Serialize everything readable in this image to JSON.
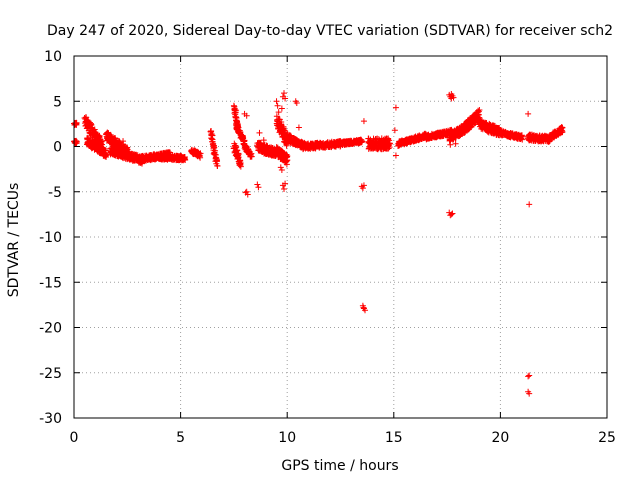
{
  "chart_data": {
    "type": "scatter",
    "title": "Day 247 of 2020, Sidereal Day-to-day VTEC variation (SDTVAR) for receiver sch2",
    "xlabel": "GPS time / hours",
    "ylabel": "SDTVAR / TECUs",
    "xlim": [
      0,
      25
    ],
    "ylim": [
      -30,
      10
    ],
    "xticks": [
      0,
      5,
      10,
      15,
      20,
      25
    ],
    "yticks": [
      -30,
      -25,
      -20,
      -15,
      -10,
      -5,
      0,
      5,
      10
    ],
    "x_tick_labels": [
      "0",
      "5",
      "10",
      "15",
      "20",
      "25"
    ],
    "y_tick_labels": [
      "-30",
      "-25",
      "-20",
      "-15",
      "-10",
      "-5",
      "0",
      "5",
      "10"
    ],
    "grid": true,
    "marker": "+",
    "color": "#ff0000",
    "series": [
      {
        "name": "sch2",
        "segments": [
          {
            "x0": 0.0,
            "x1": 0.1,
            "y0": 2.5,
            "y1": 2.5,
            "spread": 0.3
          },
          {
            "x0": 0.0,
            "x1": 0.1,
            "y0": 0.5,
            "y1": 0.5,
            "spread": 0.3
          },
          {
            "x0": 0.5,
            "x1": 1.3,
            "y0": 2.8,
            "y1": 0.2,
            "spread": 1.2
          },
          {
            "x0": 0.6,
            "x1": 1.5,
            "y0": 0.6,
            "y1": -0.8,
            "spread": 0.9
          },
          {
            "x0": 1.5,
            "x1": 2.5,
            "y0": 1.2,
            "y1": -0.6,
            "spread": 1.0
          },
          {
            "x0": 1.7,
            "x1": 3.2,
            "y0": -0.5,
            "y1": -1.5,
            "spread": 0.8
          },
          {
            "x0": 3.0,
            "x1": 4.5,
            "y0": -1.4,
            "y1": -0.9,
            "spread": 0.6
          },
          {
            "x0": 4.0,
            "x1": 5.2,
            "y0": -1.2,
            "y1": -1.3,
            "spread": 0.5
          },
          {
            "x0": 5.5,
            "x1": 5.9,
            "y0": -0.5,
            "y1": -1.0,
            "spread": 0.5
          },
          {
            "x0": 6.4,
            "x1": 6.7,
            "y0": 1.5,
            "y1": -2.0,
            "spread": 1.0
          },
          {
            "x0": 7.5,
            "x1": 7.7,
            "y0": 4.2,
            "y1": 2.0,
            "spread": 0.5
          },
          {
            "x0": 7.6,
            "x1": 8.0,
            "y0": 2.3,
            "y1": 0.3,
            "spread": 0.6
          },
          {
            "x0": 7.5,
            "x1": 7.8,
            "y0": 0.0,
            "y1": -2.0,
            "spread": 1.0
          },
          {
            "x0": 8.0,
            "x1": 8.3,
            "y0": 0.0,
            "y1": -1.0,
            "spread": 0.5
          },
          {
            "x0": 8.6,
            "x1": 9.5,
            "y0": 0.0,
            "y1": -0.8,
            "spread": 1.0
          },
          {
            "x0": 9.5,
            "x1": 10.0,
            "y0": 3.0,
            "y1": 0.5,
            "spread": 1.5
          },
          {
            "x0": 9.5,
            "x1": 10.0,
            "y0": -0.5,
            "y1": -1.5,
            "spread": 1.0
          },
          {
            "x0": 10.0,
            "x1": 10.8,
            "y0": 1.0,
            "y1": 0.0,
            "spread": 0.8
          },
          {
            "x0": 10.8,
            "x1": 12.5,
            "y0": 0.0,
            "y1": 0.3,
            "spread": 0.6
          },
          {
            "x0": 12.5,
            "x1": 13.5,
            "y0": 0.3,
            "y1": 0.6,
            "spread": 0.4
          },
          {
            "x0": 13.8,
            "x1": 14.8,
            "y0": 0.3,
            "y1": 0.3,
            "spread": 1.2
          },
          {
            "x0": 15.2,
            "x1": 16.5,
            "y0": 0.3,
            "y1": 1.2,
            "spread": 0.5
          },
          {
            "x0": 16.5,
            "x1": 17.7,
            "y0": 1.0,
            "y1": 1.6,
            "spread": 0.5
          },
          {
            "x0": 17.6,
            "x1": 18.3,
            "y0": 1.0,
            "y1": 2.0,
            "spread": 1.0
          },
          {
            "x0": 18.3,
            "x1": 19.0,
            "y0": 2.0,
            "y1": 3.5,
            "spread": 1.2
          },
          {
            "x0": 19.0,
            "x1": 20.0,
            "y0": 2.5,
            "y1": 1.5,
            "spread": 1.0
          },
          {
            "x0": 20.0,
            "x1": 21.0,
            "y0": 1.5,
            "y1": 1.0,
            "spread": 0.5
          },
          {
            "x0": 21.3,
            "x1": 22.3,
            "y0": 1.0,
            "y1": 0.8,
            "spread": 0.7
          },
          {
            "x0": 22.3,
            "x1": 22.9,
            "y0": 1.0,
            "y1": 1.9,
            "spread": 0.6
          }
        ],
        "points": [
          [
            0.05,
            2.6
          ],
          [
            0.08,
            0.6
          ],
          [
            2.3,
            0.6
          ],
          [
            7.5,
            4.5
          ],
          [
            7.6,
            4.0
          ],
          [
            8.0,
            3.6
          ],
          [
            8.1,
            3.4
          ],
          [
            8.1,
            -5.0
          ],
          [
            8.15,
            -5.3
          ],
          [
            8.05,
            -5.1
          ],
          [
            8.6,
            -4.2
          ],
          [
            8.65,
            -4.5
          ],
          [
            8.7,
            1.5
          ],
          [
            8.9,
            0.7
          ],
          [
            9.5,
            5.0
          ],
          [
            9.55,
            4.5
          ],
          [
            9.6,
            3.8
          ],
          [
            9.65,
            3.0
          ],
          [
            9.8,
            5.5
          ],
          [
            9.85,
            5.9
          ],
          [
            9.9,
            5.3
          ],
          [
            9.75,
            4.2
          ],
          [
            9.7,
            -2.3
          ],
          [
            9.75,
            -2.6
          ],
          [
            9.8,
            -4.3
          ],
          [
            9.85,
            -4.7
          ],
          [
            9.9,
            -4.1
          ],
          [
            10.4,
            5.0
          ],
          [
            10.45,
            4.8
          ],
          [
            10.55,
            2.1
          ],
          [
            13.5,
            -4.4
          ],
          [
            13.55,
            -4.6
          ],
          [
            13.6,
            -4.3
          ],
          [
            13.6,
            2.8
          ],
          [
            13.55,
            -17.6
          ],
          [
            13.6,
            -17.9
          ],
          [
            13.65,
            -18.1
          ],
          [
            13.58,
            -17.8
          ],
          [
            15.1,
            4.3
          ],
          [
            15.05,
            1.8
          ],
          [
            15.1,
            -1.0
          ],
          [
            17.6,
            5.7
          ],
          [
            17.65,
            5.5
          ],
          [
            17.7,
            5.3
          ],
          [
            17.75,
            5.6
          ],
          [
            17.8,
            5.4
          ],
          [
            17.7,
            5.8
          ],
          [
            17.6,
            -7.3
          ],
          [
            17.65,
            -7.6
          ],
          [
            17.7,
            -7.5
          ],
          [
            17.75,
            -7.4
          ],
          [
            17.65,
            0.2
          ],
          [
            17.9,
            0.3
          ],
          [
            21.3,
            3.6
          ],
          [
            21.35,
            -6.4
          ],
          [
            21.3,
            -25.4
          ],
          [
            21.35,
            -25.3
          ],
          [
            21.3,
            -27.1
          ],
          [
            21.35,
            -27.3
          ]
        ]
      }
    ]
  }
}
